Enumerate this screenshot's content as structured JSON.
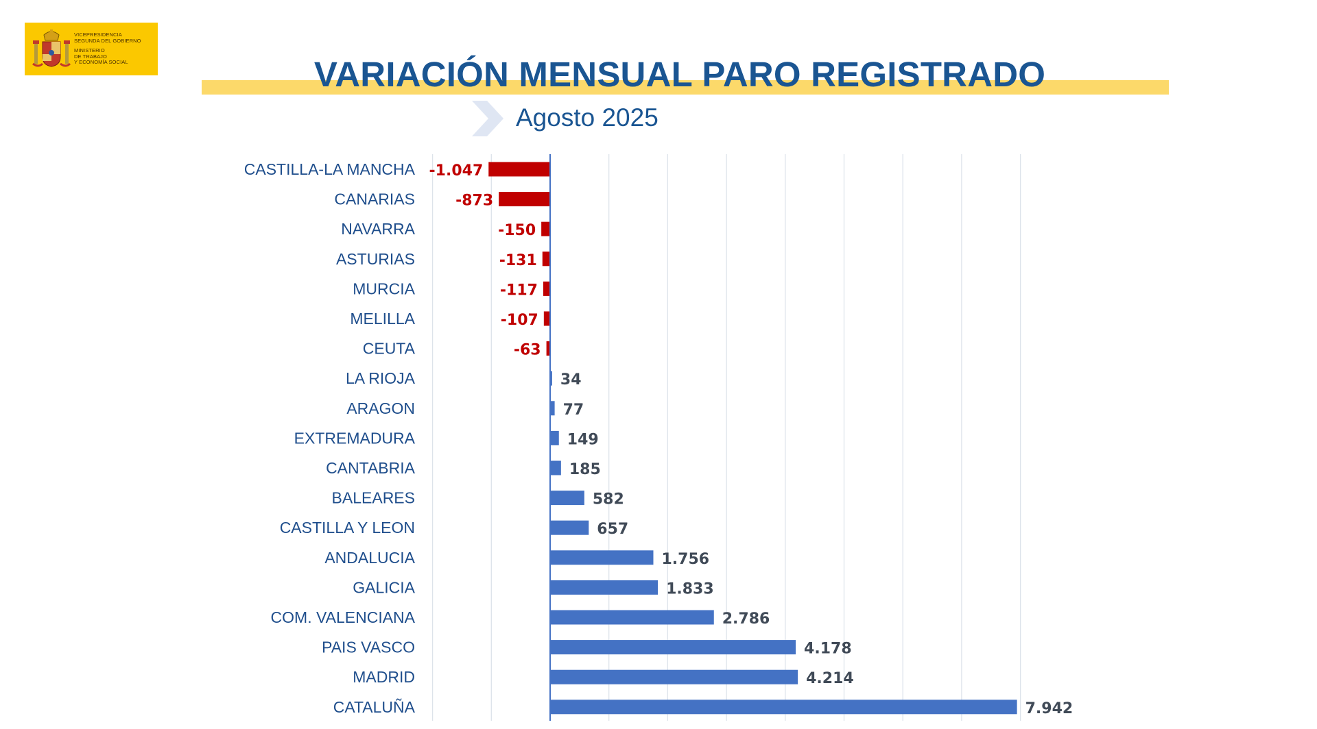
{
  "logo": {
    "line1": "VICEPRESIDENCIA",
    "line2": "SEGUNDA DEL GOBIERNO",
    "line3": "MINISTERIO",
    "line4": "DE TRABAJO",
    "line5": "Y ECONOMÍA SOCIAL"
  },
  "header": {
    "title": "VARIACIÓN MENSUAL PARO REGISTRADO",
    "subtitle": "Agosto 2025"
  },
  "colors": {
    "negative": "#c00000",
    "positive": "#4472c4",
    "title": "#1a5592",
    "highlight": "#fcd96a",
    "logo_bg": "#fbc800"
  },
  "chart_data": {
    "type": "bar",
    "orientation": "horizontal",
    "title": "VARIACIÓN MENSUAL PARO REGISTRADO",
    "subtitle": "Agosto 2025",
    "categories": [
      "CASTILLA-LA MANCHA",
      "CANARIAS",
      "NAVARRA",
      "ASTURIAS",
      "MURCIA",
      "MELILLA",
      "CEUTA",
      "LA RIOJA",
      "ARAGON",
      "EXTREMADURA",
      "CANTABRIA",
      "BALEARES",
      "CASTILLA Y LEON",
      "ANDALUCIA",
      "GALICIA",
      "COM. VALENCIANA",
      "PAIS VASCO",
      "MADRID",
      "CATALUÑA"
    ],
    "values": [
      -1047,
      -873,
      -150,
      -131,
      -117,
      -107,
      -63,
      34,
      77,
      149,
      185,
      582,
      657,
      1756,
      1833,
      2786,
      4178,
      4214,
      7942
    ],
    "value_labels": [
      "-1.047",
      "-873",
      "-150",
      "-131",
      "-117",
      "-107",
      "-63",
      "34",
      "77",
      "149",
      "185",
      "582",
      "657",
      "1.756",
      "1.833",
      "2.786",
      "4.178",
      "4.214",
      "7.942"
    ],
    "xlim": [
      -2000,
      9000
    ],
    "grid": true,
    "legend": "none"
  }
}
